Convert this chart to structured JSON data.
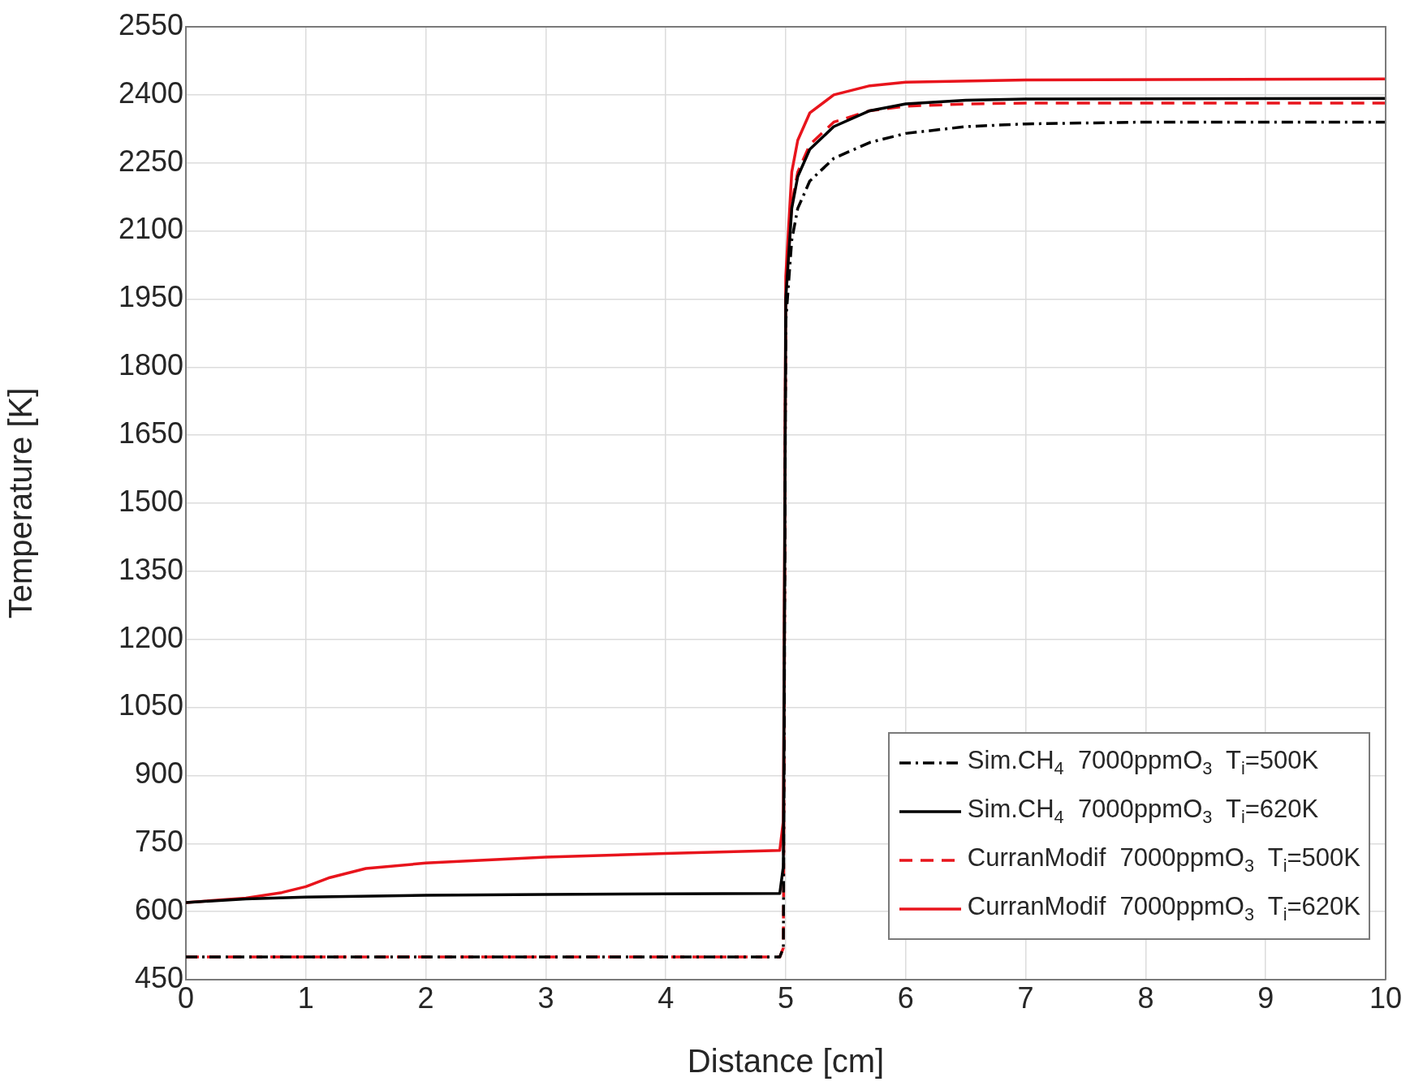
{
  "chart_data": {
    "type": "line",
    "xlabel": "Distance [cm]",
    "ylabel": "Temperature [K]",
    "xlim": [
      0,
      10
    ],
    "xticks": [
      0,
      1,
      2,
      3,
      4,
      5,
      6,
      7,
      8,
      9,
      10
    ],
    "ylim": [
      450,
      2550
    ],
    "yticks": [
      450,
      600,
      750,
      900,
      1050,
      1200,
      1350,
      1500,
      1650,
      1800,
      1950,
      2100,
      2250,
      2400,
      2550
    ],
    "grid": true,
    "legend": "bottom right",
    "marker": "none",
    "series": [
      {
        "name": "Sim.CH$_{4}$  7000ppmO$_{3}$  T$_{i}$=500K",
        "color": "#000000",
        "line_style": "dashdot",
        "x": [
          0,
          4.95,
          4.98,
          5.0,
          5.05,
          5.1,
          5.2,
          5.4,
          5.7,
          6,
          6.5,
          7,
          8,
          10
        ],
        "values": [
          500,
          500,
          520,
          1900,
          2080,
          2150,
          2210,
          2260,
          2295,
          2315,
          2330,
          2336,
          2340,
          2340
        ]
      },
      {
        "name": "Sim.CH$_{4}$  7000ppmO$_{3}$  T$_{i}$=620K",
        "color": "#000000",
        "line_style": "solid",
        "x": [
          0,
          0.5,
          1,
          2,
          3,
          4,
          4.95,
          4.98,
          5.0,
          5.05,
          5.1,
          5.2,
          5.4,
          5.7,
          6,
          6.5,
          7,
          10
        ],
        "values": [
          620,
          628,
          632,
          636,
          638,
          639,
          640,
          700,
          1950,
          2150,
          2220,
          2280,
          2330,
          2365,
          2380,
          2388,
          2391,
          2392
        ]
      },
      {
        "name": "CurranModif  7000ppmO$_{3}$  T$_{i}$=500K",
        "color": "#e8141c",
        "line_style": "dashed",
        "x": [
          0,
          4.95,
          4.98,
          5.0,
          5.05,
          5.1,
          5.2,
          5.4,
          5.7,
          6,
          6.5,
          7,
          10
        ],
        "values": [
          500,
          500,
          520,
          1950,
          2160,
          2230,
          2290,
          2340,
          2365,
          2375,
          2380,
          2382,
          2382
        ]
      },
      {
        "name": "CurranModif  7000ppmO$_{3}$  T$_{i}$=620K",
        "color": "#e8141c",
        "line_style": "solid",
        "x": [
          0,
          0.5,
          0.8,
          1,
          1.2,
          1.5,
          2,
          3,
          4,
          4.95,
          4.98,
          5.0,
          5.05,
          5.1,
          5.2,
          5.4,
          5.7,
          6,
          7,
          10
        ],
        "values": [
          620,
          630,
          642,
          655,
          675,
          695,
          707,
          720,
          728,
          735,
          800,
          2000,
          2230,
          2300,
          2360,
          2400,
          2420,
          2428,
          2433,
          2435
        ]
      }
    ]
  }
}
